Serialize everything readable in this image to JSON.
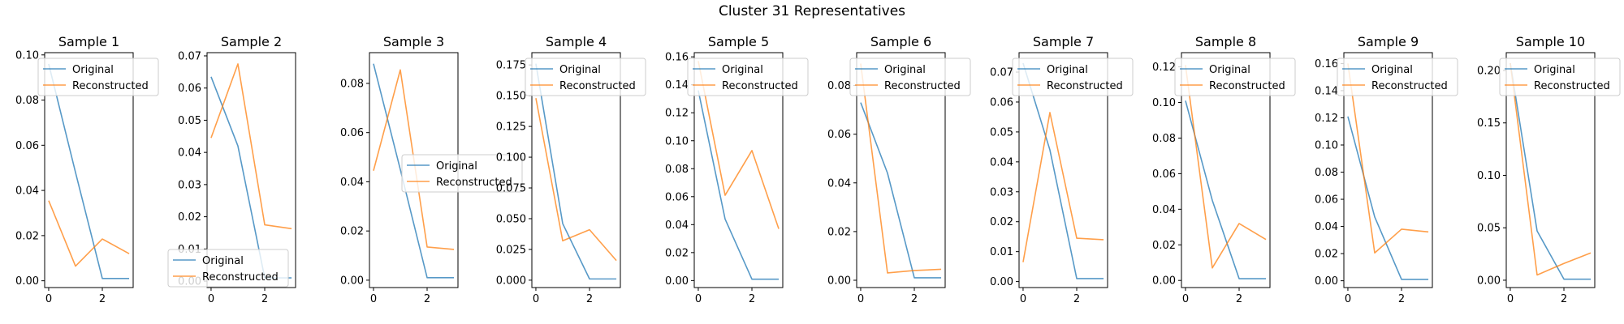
{
  "figure": {
    "title": "Cluster 31 Representatives"
  },
  "colors": {
    "original": "#1f77b4",
    "reconstructed": "#ff7f0e",
    "axis": "#000000"
  },
  "chart_data": [
    {
      "type": "line",
      "title": "Sample 1",
      "x": [
        0,
        1,
        2,
        3
      ],
      "xticks": [
        0,
        2
      ],
      "ylim": [
        -0.003,
        0.101
      ],
      "yticks": [
        "0.00",
        "0.02",
        "0.04",
        "0.06",
        "0.08",
        "0.10"
      ],
      "ytick_values": [
        0,
        0.02,
        0.04,
        0.06,
        0.08,
        0.1
      ],
      "legend_position": "upper right",
      "series": [
        {
          "name": "Original",
          "values": [
            0.096,
            0.048,
            0.001,
            0.001
          ]
        },
        {
          "name": "Reconstructed",
          "values": [
            0.0355,
            0.0065,
            0.0185,
            0.012
          ]
        }
      ]
    },
    {
      "type": "line",
      "title": "Sample 2",
      "x": [
        0,
        1,
        2,
        3
      ],
      "xticks": [
        0,
        2
      ],
      "ylim": [
        -0.002,
        0.071
      ],
      "yticks": [
        "0.00",
        "0.01",
        "0.02",
        "0.03",
        "0.04",
        "0.05",
        "0.06",
        "0.07"
      ],
      "ytick_values": [
        0,
        0.01,
        0.02,
        0.03,
        0.04,
        0.05,
        0.06,
        0.07
      ],
      "legend_position": "lower left",
      "series": [
        {
          "name": "Original",
          "values": [
            0.0635,
            0.042,
            0.001,
            0.001
          ]
        },
        {
          "name": "Reconstructed",
          "values": [
            0.0445,
            0.0675,
            0.0175,
            0.0163
          ]
        }
      ]
    },
    {
      "type": "line",
      "title": "Sample 3",
      "x": [
        0,
        1,
        2,
        3
      ],
      "xticks": [
        0,
        2
      ],
      "ylim": [
        -0.003,
        0.0925
      ],
      "yticks": [
        "0.00",
        "0.02",
        "0.04",
        "0.06",
        "0.08"
      ],
      "ytick_values": [
        0,
        0.02,
        0.04,
        0.06,
        0.08
      ],
      "legend_position": "center right",
      "series": [
        {
          "name": "Original",
          "values": [
            0.088,
            0.045,
            0.001,
            0.001
          ]
        },
        {
          "name": "Reconstructed",
          "values": [
            0.0445,
            0.0855,
            0.0135,
            0.0125
          ]
        }
      ]
    },
    {
      "type": "line",
      "title": "Sample 4",
      "x": [
        0,
        1,
        2,
        3
      ],
      "xticks": [
        0,
        2
      ],
      "ylim": [
        -0.006,
        0.185
      ],
      "yticks": [
        "0.000",
        "0.025",
        "0.050",
        "0.075",
        "0.100",
        "0.125",
        "0.150",
        "0.175"
      ],
      "ytick_values": [
        0,
        0.025,
        0.05,
        0.075,
        0.1,
        0.125,
        0.15,
        0.175
      ],
      "legend_position": "upper right",
      "series": [
        {
          "name": "Original",
          "values": [
            0.176,
            0.046,
            0.001,
            0.001
          ]
        },
        {
          "name": "Reconstructed",
          "values": [
            0.148,
            0.032,
            0.041,
            0.016
          ]
        }
      ]
    },
    {
      "type": "line",
      "title": "Sample 5",
      "x": [
        0,
        1,
        2,
        3
      ],
      "xticks": [
        0,
        2
      ],
      "ylim": [
        -0.005,
        0.163
      ],
      "yticks": [
        "0.00",
        "0.02",
        "0.04",
        "0.06",
        "0.08",
        "0.10",
        "0.12",
        "0.14",
        "0.16"
      ],
      "ytick_values": [
        0,
        0.02,
        0.04,
        0.06,
        0.08,
        0.1,
        0.12,
        0.14,
        0.16
      ],
      "legend_position": "upper right",
      "series": [
        {
          "name": "Original",
          "values": [
            0.136,
            0.044,
            0.001,
            0.001
          ]
        },
        {
          "name": "Reconstructed",
          "values": [
            0.157,
            0.061,
            0.093,
            0.037
          ]
        }
      ]
    },
    {
      "type": "line",
      "title": "Sample 6",
      "x": [
        0,
        1,
        2,
        3
      ],
      "xticks": [
        0,
        2
      ],
      "ylim": [
        -0.003,
        0.0935
      ],
      "yticks": [
        "0.00",
        "0.02",
        "0.04",
        "0.06",
        "0.08"
      ],
      "ytick_values": [
        0,
        0.02,
        0.04,
        0.06,
        0.08
      ],
      "legend_position": "upper right",
      "series": [
        {
          "name": "Original",
          "values": [
            0.073,
            0.044,
            0.001,
            0.001
          ]
        },
        {
          "name": "Reconstructed",
          "values": [
            0.089,
            0.003,
            0.004,
            0.0045
          ]
        }
      ]
    },
    {
      "type": "line",
      "title": "Sample 7",
      "x": [
        0,
        1,
        2,
        3
      ],
      "xticks": [
        0,
        2
      ],
      "ylim": [
        -0.002,
        0.0765
      ],
      "yticks": [
        "0.00",
        "0.01",
        "0.02",
        "0.03",
        "0.04",
        "0.05",
        "0.06",
        "0.07"
      ],
      "ytick_values": [
        0,
        0.01,
        0.02,
        0.03,
        0.04,
        0.05,
        0.06,
        0.07
      ],
      "legend_position": "upper right",
      "series": [
        {
          "name": "Original",
          "values": [
            0.073,
            0.044,
            0.001,
            0.001
          ]
        },
        {
          "name": "Reconstructed",
          "values": [
            0.0065,
            0.0565,
            0.0145,
            0.014
          ]
        }
      ]
    },
    {
      "type": "line",
      "title": "Sample 8",
      "x": [
        0,
        1,
        2,
        3
      ],
      "xticks": [
        0,
        2
      ],
      "ylim": [
        -0.004,
        0.128
      ],
      "yticks": [
        "0.00",
        "0.02",
        "0.04",
        "0.06",
        "0.08",
        "0.10",
        "0.12"
      ],
      "ytick_values": [
        0,
        0.02,
        0.04,
        0.06,
        0.08,
        0.1,
        0.12
      ],
      "legend_position": "upper right",
      "series": [
        {
          "name": "Original",
          "values": [
            0.101,
            0.045,
            0.001,
            0.001
          ]
        },
        {
          "name": "Reconstructed",
          "values": [
            0.121,
            0.007,
            0.032,
            0.023
          ]
        }
      ]
    },
    {
      "type": "line",
      "title": "Sample 9",
      "x": [
        0,
        1,
        2,
        3
      ],
      "xticks": [
        0,
        2
      ],
      "ylim": [
        -0.005,
        0.168
      ],
      "yticks": [
        "0.00",
        "0.02",
        "0.04",
        "0.06",
        "0.08",
        "0.10",
        "0.12",
        "0.14",
        "0.16"
      ],
      "ytick_values": [
        0,
        0.02,
        0.04,
        0.06,
        0.08,
        0.1,
        0.12,
        0.14,
        0.16
      ],
      "legend_position": "upper right",
      "series": [
        {
          "name": "Original",
          "values": [
            0.121,
            0.047,
            0.001,
            0.001
          ]
        },
        {
          "name": "Reconstructed",
          "values": [
            0.16,
            0.0205,
            0.038,
            0.036
          ]
        }
      ]
    },
    {
      "type": "line",
      "title": "Sample 10",
      "x": [
        0,
        1,
        2,
        3
      ],
      "xticks": [
        0,
        2
      ],
      "ylim": [
        -0.007,
        0.217
      ],
      "yticks": [
        "0.00",
        "0.05",
        "0.10",
        "0.15",
        "0.20"
      ],
      "ytick_values": [
        0,
        0.05,
        0.1,
        0.15,
        0.2
      ],
      "legend_position": "upper right",
      "series": [
        {
          "name": "Original",
          "values": [
            0.207,
            0.047,
            0.001,
            0.001
          ]
        },
        {
          "name": "Reconstructed",
          "values": [
            0.207,
            0.005,
            0.016,
            0.026
          ]
        }
      ]
    }
  ]
}
